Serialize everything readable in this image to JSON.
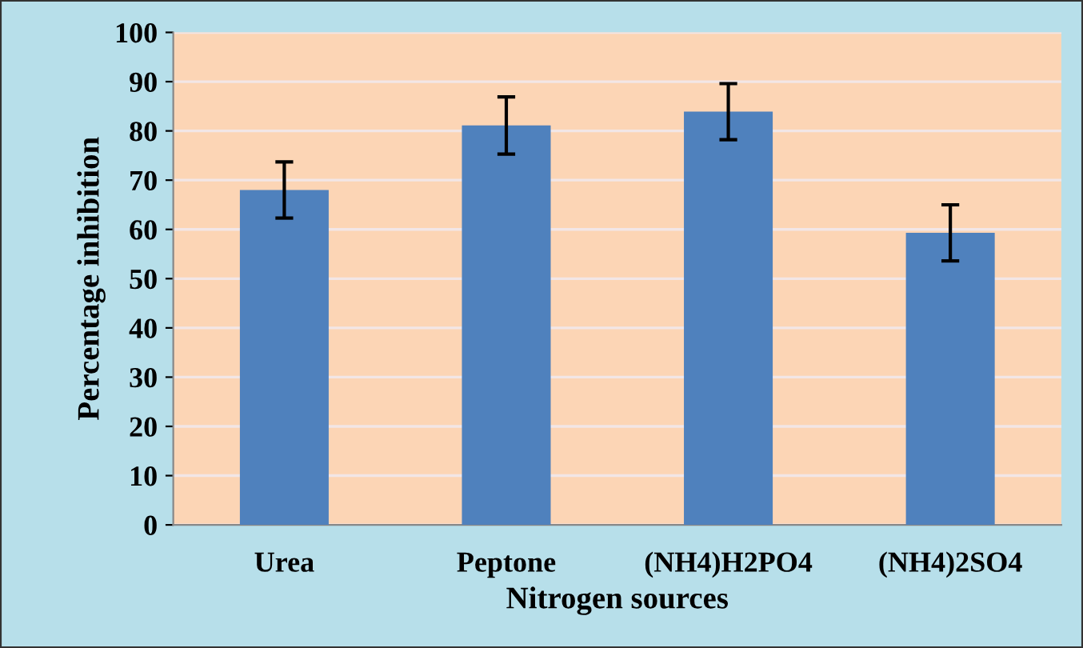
{
  "chart_data": {
    "type": "bar",
    "xlabel": "Nitrogen sources",
    "ylabel": "Percentage inhibition",
    "categories": [
      "Urea",
      "Peptone",
      "(NH4)H2PO4",
      "(NH4)2SO4"
    ],
    "values": [
      68,
      81.1,
      83.9,
      59.3
    ],
    "errors": [
      5.7,
      5.8,
      5.7,
      5.7
    ],
    "color": "#4f81bd",
    "ylim": [
      0,
      100
    ],
    "yticks": [
      0,
      10,
      20,
      30,
      40,
      50,
      60,
      70,
      80,
      90,
      100
    ],
    "grid": "y"
  }
}
